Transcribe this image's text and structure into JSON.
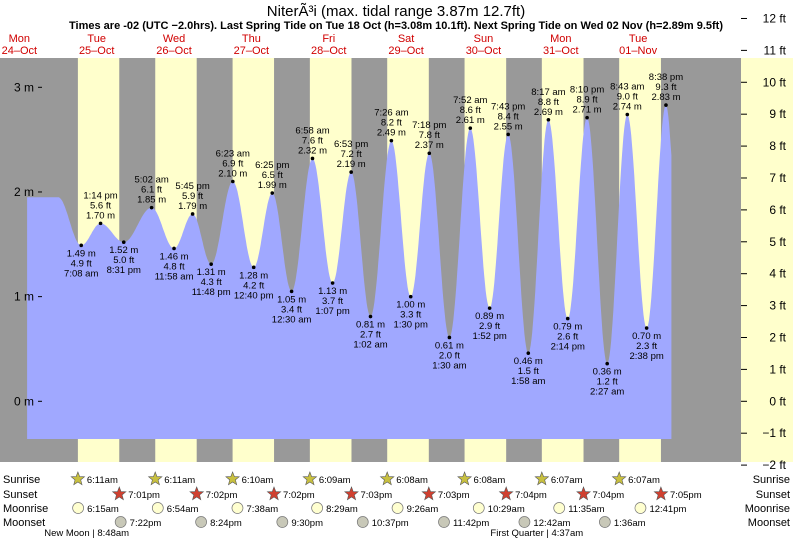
{
  "chart_data": {
    "type": "area",
    "title": "NiterÃ³i (max. tidal range 3.87m 12.7ft)",
    "subtitle": "Times are -02 (UTC −2.0hrs). Last Spring Tide on Tue 18 Oct (h=3.08m 10.1ft). Next Spring Tide on Wed 02 Nov (h=2.89m 9.5ft)",
    "day_weekdays": [
      "Mon",
      "Tue",
      "Wed",
      "Thu",
      "Fri",
      "Sat",
      "Sun",
      "Mon",
      "Tue"
    ],
    "day_dates": [
      "24–Oct",
      "25–Oct",
      "26–Oct",
      "27–Oct",
      "28–Oct",
      "29–Oct",
      "30–Oct",
      "31–Oct",
      "01–Nov"
    ],
    "ylim_m": [
      -0.58,
      3.28
    ],
    "y_ticks_m": [
      "3 m",
      "2 m",
      "1 m",
      "0 m"
    ],
    "y_ticks_ft": [
      "12 ft",
      "11 ft",
      "10 ft",
      "9 ft",
      "8 ft",
      "7 ft",
      "6 ft",
      "5 ft",
      "4 ft",
      "3 ft",
      "2 ft",
      "1 ft",
      "0 ft",
      "−1 ft",
      "−2 ft"
    ],
    "start_height_m": 1.95,
    "end_height_m": 2.35,
    "extremes": [
      {
        "type": "low",
        "day": 1.3,
        "h": 1.49,
        "m": "1.49 m",
        "ft": "4.9 ft",
        "time": "7:08 am"
      },
      {
        "type": "high",
        "day": 1.55,
        "h": 1.7,
        "m": "1.70 m",
        "ft": "5.6 ft",
        "time": "1:14 pm"
      },
      {
        "type": "low",
        "day": 1.85,
        "h": 1.52,
        "m": "1.52 m",
        "ft": "5.0 ft",
        "time": "8:31 pm"
      },
      {
        "type": "high",
        "day": 2.21,
        "h": 1.85,
        "m": "1.85 m",
        "ft": "6.1 ft",
        "time": "5:02 am"
      },
      {
        "type": "low",
        "day": 2.5,
        "h": 1.46,
        "m": "1.46 m",
        "ft": "4.8 ft",
        "time": "11:58 am"
      },
      {
        "type": "high",
        "day": 2.74,
        "h": 1.79,
        "m": "1.79 m",
        "ft": "5.9 ft",
        "time": "5:45 pm"
      },
      {
        "type": "low",
        "day": 2.98,
        "h": 1.31,
        "m": "1.31 m",
        "ft": "4.3 ft",
        "time": "11:48 pm"
      },
      {
        "type": "high",
        "day": 3.26,
        "h": 2.1,
        "m": "2.10 m",
        "ft": "6.9 ft",
        "time": "6:23 am"
      },
      {
        "type": "low",
        "day": 3.53,
        "h": 1.28,
        "m": "1.28 m",
        "ft": "4.2 ft",
        "time": "12:40 pm"
      },
      {
        "type": "high",
        "day": 3.77,
        "h": 1.99,
        "m": "1.99 m",
        "ft": "6.5 ft",
        "time": "6:25 pm"
      },
      {
        "type": "low",
        "day": 4.02,
        "h": 1.05,
        "m": "1.05 m",
        "ft": "3.4 ft",
        "time": "12:30 am"
      },
      {
        "type": "high",
        "day": 4.29,
        "h": 2.32,
        "m": "2.32 m",
        "ft": "7.6 ft",
        "time": "6:58 am"
      },
      {
        "type": "low",
        "day": 4.55,
        "h": 1.13,
        "m": "1.13 m",
        "ft": "3.7 ft",
        "time": "1:07 pm"
      },
      {
        "type": "high",
        "day": 4.79,
        "h": 2.19,
        "m": "2.19 m",
        "ft": "7.2 ft",
        "time": "6:53 pm"
      },
      {
        "type": "low",
        "day": 5.04,
        "h": 0.81,
        "m": "0.81 m",
        "ft": "2.7 ft",
        "time": "1:02 am"
      },
      {
        "type": "high",
        "day": 5.31,
        "h": 2.49,
        "m": "2.49 m",
        "ft": "8.2 ft",
        "time": "7:26 am"
      },
      {
        "type": "low",
        "day": 5.56,
        "h": 1.0,
        "m": "1.00 m",
        "ft": "3.3 ft",
        "time": "1:30 pm"
      },
      {
        "type": "high",
        "day": 5.8,
        "h": 2.37,
        "m": "2.37 m",
        "ft": "7.8 ft",
        "time": "7:18 pm"
      },
      {
        "type": "low",
        "day": 6.06,
        "h": 0.61,
        "m": "0.61 m",
        "ft": "2.0 ft",
        "time": "1:30 am"
      },
      {
        "type": "high",
        "day": 6.33,
        "h": 2.61,
        "m": "2.61 m",
        "ft": "8.6 ft",
        "time": "7:52 am"
      },
      {
        "type": "low",
        "day": 6.58,
        "h": 0.89,
        "m": "0.89 m",
        "ft": "2.9 ft",
        "time": "1:52 pm"
      },
      {
        "type": "high",
        "day": 6.82,
        "h": 2.55,
        "m": "2.55 m",
        "ft": "8.4 ft",
        "time": "7:43 pm"
      },
      {
        "type": "low",
        "day": 7.08,
        "h": 0.46,
        "m": "0.46 m",
        "ft": "1.5 ft",
        "time": "1:58 am"
      },
      {
        "type": "high",
        "day": 7.34,
        "h": 2.69,
        "m": "2.69 m",
        "ft": "8.8 ft",
        "time": "8:17 am"
      },
      {
        "type": "low",
        "day": 7.59,
        "h": 0.79,
        "m": "0.79 m",
        "ft": "2.6 ft",
        "time": "2:14 pm"
      },
      {
        "type": "high",
        "day": 7.84,
        "h": 2.71,
        "m": "2.71 m",
        "ft": "8.9 ft",
        "time": "8:10 pm"
      },
      {
        "type": "low",
        "day": 8.1,
        "h": 0.36,
        "m": "0.36 m",
        "ft": "1.2 ft",
        "time": "2:27 am"
      },
      {
        "type": "high",
        "day": 8.36,
        "h": 2.74,
        "m": "2.74 m",
        "ft": "9.0 ft",
        "time": "8:43 am"
      },
      {
        "type": "low",
        "day": 8.61,
        "h": 0.7,
        "m": "0.70 m",
        "ft": "2.3 ft",
        "time": "2:38 pm"
      },
      {
        "type": "high",
        "day": 8.86,
        "h": 2.83,
        "m": "2.83 m",
        "ft": "9.3 ft",
        "time": "8:38 pm"
      }
    ],
    "daylight": [
      {
        "rise": 1.257,
        "set": 1.792
      },
      {
        "rise": 2.257,
        "set": 2.793
      },
      {
        "rise": 3.257,
        "set": 3.793
      },
      {
        "rise": 4.256,
        "set": 4.794
      },
      {
        "rise": 5.256,
        "set": 5.794
      },
      {
        "rise": 6.256,
        "set": 6.794
      },
      {
        "rise": 7.255,
        "set": 7.794
      },
      {
        "rise": 8.255,
        "set": 8.795
      }
    ],
    "row_labels": [
      "Sunrise",
      "Sunset",
      "Moonrise",
      "Moonset"
    ],
    "sunrise_times": [
      "6:11am",
      "6:11am",
      "6:10am",
      "6:09am",
      "6:08am",
      "6:08am",
      "6:07am",
      "6:07am"
    ],
    "sunset_times": [
      "7:01pm",
      "7:02pm",
      "7:02pm",
      "7:03pm",
      "7:03pm",
      "7:04pm",
      "7:04pm",
      "7:05pm"
    ],
    "moonrise_times": [
      "6:15am",
      "6:54am",
      "7:38am",
      "8:29am",
      "9:26am",
      "10:29am",
      "11:35am",
      "12:41pm"
    ],
    "moonrise_days": [
      1.26,
      2.29,
      3.32,
      4.35,
      5.39,
      6.44,
      7.48,
      8.53
    ],
    "moonset_times": [
      "7:22pm",
      "8:24pm",
      "9:30pm",
      "10:37pm",
      "11:42pm",
      "12:42am",
      "1:36am"
    ],
    "moonset_days": [
      1.81,
      2.85,
      3.9,
      4.94,
      5.99,
      7.03,
      8.07
    ],
    "moon_phases": [
      {
        "label": "New Moon | 8:48am",
        "day": 1.37
      },
      {
        "label": "First Quarter | 4:37am",
        "day": 7.19
      }
    ],
    "colors": {
      "night": "#999999",
      "day": "#ffffcc",
      "water": "#a0a8ff",
      "day_label": "#d00000",
      "sunrise_star": "#c8c040",
      "sunset_star": "#d04030",
      "moonrise": "#ffffd0",
      "moonset": "#c8c8b8"
    }
  }
}
